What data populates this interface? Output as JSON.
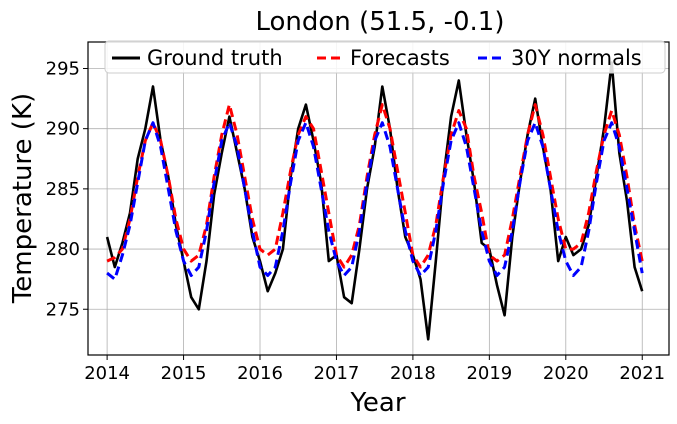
{
  "chart_data": {
    "type": "line",
    "title": "London (51.5, -0.1)",
    "xlabel": "Year",
    "ylabel": "Temperature (K)",
    "xlim": [
      2013.75,
      2021.35
    ],
    "ylim": [
      271.2,
      297.2
    ],
    "xticks": [
      2014,
      2015,
      2016,
      2017,
      2018,
      2019,
      2020,
      2021
    ],
    "xtick_labels": [
      "2014",
      "2015",
      "2016",
      "2017",
      "2018",
      "2019",
      "2020",
      "2021"
    ],
    "yticks": [
      275,
      280,
      285,
      290,
      295
    ],
    "ytick_labels": [
      "275",
      "280",
      "285",
      "290",
      "295"
    ],
    "grid": true,
    "legend_position": "top",
    "x": [
      2014.0,
      2014.1,
      2014.2,
      2014.3,
      2014.4,
      2014.5,
      2014.6,
      2014.7,
      2014.8,
      2014.9,
      2015.0,
      2015.1,
      2015.2,
      2015.3,
      2015.4,
      2015.5,
      2015.6,
      2015.7,
      2015.8,
      2015.9,
      2016.0,
      2016.1,
      2016.2,
      2016.3,
      2016.4,
      2016.5,
      2016.6,
      2016.7,
      2016.8,
      2016.9,
      2017.0,
      2017.1,
      2017.2,
      2017.3,
      2017.4,
      2017.5,
      2017.6,
      2017.7,
      2017.8,
      2017.9,
      2018.0,
      2018.1,
      2018.2,
      2018.3,
      2018.4,
      2018.5,
      2018.6,
      2018.7,
      2018.8,
      2018.9,
      2019.0,
      2019.1,
      2019.2,
      2019.3,
      2019.4,
      2019.5,
      2019.6,
      2019.7,
      2019.8,
      2019.9,
      2020.0,
      2020.1,
      2020.2,
      2020.3,
      2020.4,
      2020.5,
      2020.6,
      2020.7,
      2020.8,
      2020.9,
      2021.0
    ],
    "series": [
      {
        "name": "Ground truth",
        "color": "#000000",
        "dash": "solid",
        "values": [
          281.0,
          278.5,
          280.5,
          283.0,
          287.5,
          290.0,
          293.5,
          289.0,
          286.0,
          282.0,
          279.0,
          276.0,
          275.0,
          279.0,
          284.5,
          288.0,
          291.0,
          288.0,
          285.0,
          281.0,
          279.0,
          276.5,
          278.0,
          280.0,
          286.0,
          290.0,
          292.0,
          289.0,
          285.5,
          279.0,
          279.5,
          276.0,
          275.5,
          280.0,
          285.0,
          288.5,
          293.5,
          290.0,
          285.0,
          281.0,
          279.5,
          277.5,
          272.5,
          279.0,
          286.0,
          291.0,
          294.0,
          289.5,
          285.5,
          280.5,
          280.0,
          277.0,
          274.5,
          281.0,
          285.5,
          289.5,
          292.5,
          288.5,
          285.0,
          279.0,
          281.0,
          279.5,
          280.0,
          282.0,
          286.0,
          290.0,
          295.5,
          288.0,
          284.0,
          278.5,
          276.5
        ]
      },
      {
        "name": "Forecasts",
        "color": "#ff0000",
        "dash": "dashed",
        "values": [
          279.0,
          279.3,
          280.0,
          282.5,
          286.0,
          289.0,
          290.5,
          289.0,
          286.0,
          282.5,
          280.0,
          279.0,
          279.5,
          282.0,
          286.0,
          289.5,
          292.0,
          289.5,
          286.0,
          282.5,
          280.0,
          279.5,
          280.0,
          283.0,
          286.5,
          289.5,
          291.0,
          290.0,
          286.5,
          283.0,
          279.5,
          278.5,
          279.5,
          282.0,
          286.0,
          289.5,
          292.0,
          290.0,
          286.5,
          283.0,
          279.5,
          278.5,
          279.5,
          282.0,
          286.0,
          289.5,
          291.5,
          290.0,
          286.0,
          283.0,
          279.5,
          279.0,
          279.5,
          282.5,
          286.0,
          289.5,
          292.0,
          289.5,
          286.0,
          282.5,
          280.0,
          280.0,
          280.5,
          283.0,
          286.5,
          289.5,
          291.5,
          289.5,
          286.0,
          282.0,
          279.0
        ]
      },
      {
        "name": "30Y normals",
        "color": "#0000ff",
        "dash": "dashed",
        "values": [
          278.0,
          277.5,
          279.5,
          282.0,
          285.5,
          289.0,
          290.5,
          288.5,
          285.0,
          281.5,
          279.0,
          277.8,
          278.5,
          281.5,
          285.5,
          289.0,
          290.5,
          288.5,
          285.0,
          281.5,
          278.5,
          277.8,
          278.5,
          281.5,
          285.5,
          289.0,
          290.5,
          288.5,
          285.0,
          281.5,
          279.0,
          277.8,
          278.5,
          281.5,
          285.5,
          289.0,
          290.5,
          288.5,
          285.0,
          281.5,
          279.0,
          277.8,
          278.5,
          281.5,
          285.5,
          289.0,
          290.5,
          288.5,
          285.0,
          281.5,
          279.0,
          277.8,
          278.5,
          281.5,
          285.5,
          289.0,
          290.5,
          288.5,
          285.0,
          281.5,
          279.0,
          277.8,
          278.5,
          281.5,
          285.5,
          289.0,
          290.5,
          288.5,
          285.0,
          281.5,
          278.0
        ]
      }
    ]
  }
}
